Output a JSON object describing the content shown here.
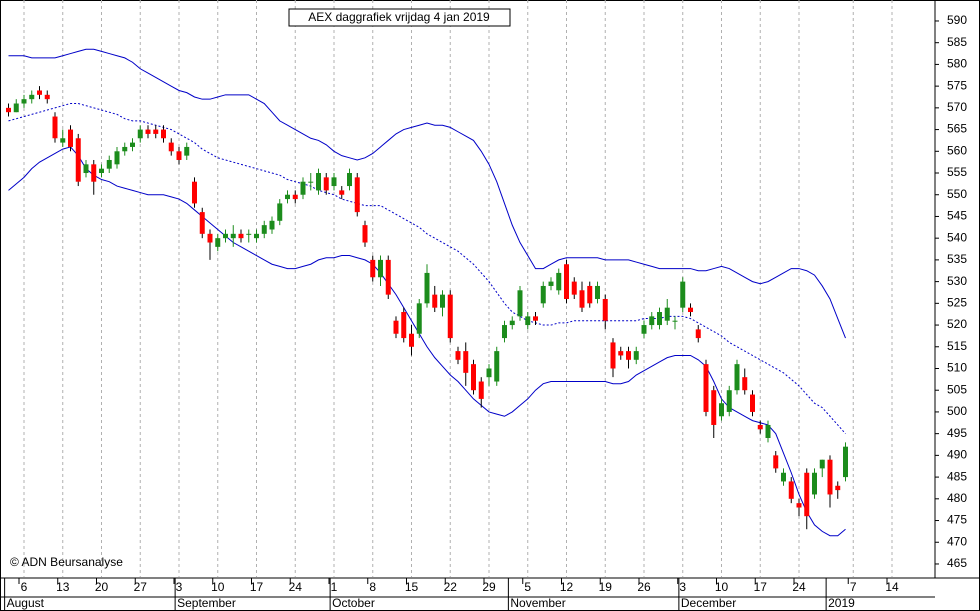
{
  "chart_data": {
    "type": "candlestick",
    "title": "AEX daggrafiek vrijdag 4 jan 2019",
    "credit": "© ADN Beursanalyse",
    "up_color": "#1c8c1c",
    "down_color": "#ff0000",
    "categories": [
      null,
      null,
      "6",
      null,
      null,
      null,
      null,
      "13",
      null,
      null,
      null,
      null,
      "20",
      null,
      null,
      null,
      null,
      "27",
      null,
      null,
      null,
      null,
      "3",
      null,
      null,
      null,
      null,
      "10",
      null,
      null,
      null,
      null,
      "17",
      null,
      null,
      null,
      null,
      "24",
      null,
      null,
      null,
      null,
      "1",
      null,
      null,
      null,
      null,
      "8",
      null,
      null,
      null,
      null,
      "15",
      null,
      null,
      null,
      null,
      "22",
      null,
      null,
      null,
      null,
      "29",
      null,
      null,
      null,
      null,
      "5",
      null,
      null,
      null,
      null,
      "12",
      null,
      null,
      null,
      null,
      "19",
      null,
      null,
      null,
      null,
      "26",
      null,
      null,
      null,
      null,
      "3",
      null,
      null,
      null,
      null,
      "10",
      null,
      null,
      null,
      null,
      "17",
      null,
      null,
      null,
      null,
      "24",
      null,
      null,
      null,
      null,
      null,
      null,
      "7",
      null,
      null,
      null,
      null,
      "14",
      null,
      null,
      null,
      null
    ],
    "month_categories": [
      "August",
      null,
      null,
      null,
      null,
      null,
      null,
      null,
      null,
      null,
      null,
      null,
      null,
      null,
      null,
      null,
      null,
      null,
      null,
      null,
      null,
      null,
      "September",
      null,
      null,
      null,
      null,
      null,
      null,
      null,
      null,
      null,
      null,
      null,
      null,
      null,
      null,
      null,
      null,
      null,
      null,
      null,
      "October",
      null,
      null,
      null,
      null,
      null,
      null,
      null,
      null,
      null,
      null,
      null,
      null,
      null,
      null,
      null,
      null,
      null,
      null,
      null,
      null,
      null,
      null,
      "November",
      null,
      null,
      null,
      null,
      null,
      null,
      null,
      null,
      null,
      null,
      null,
      null,
      null,
      null,
      null,
      null,
      null,
      null,
      null,
      null,
      null,
      "December",
      null,
      null,
      null,
      null,
      null,
      null,
      null,
      null,
      null,
      null,
      null,
      null,
      null,
      null,
      null,
      null,
      null,
      null,
      "2019",
      null,
      null,
      null,
      null,
      null,
      null,
      null,
      null,
      null,
      null,
      null,
      null,
      null
    ],
    "open": [
      570,
      569,
      571,
      572,
      574,
      573,
      568,
      562,
      565,
      563,
      555,
      557,
      555,
      556,
      557,
      560,
      561,
      563,
      565,
      565,
      565,
      562,
      560,
      559,
      553,
      546,
      541,
      538,
      540,
      540,
      541,
      541,
      540,
      541,
      542,
      544,
      549,
      550,
      550,
      553,
      551,
      554,
      552,
      551,
      552,
      554,
      543,
      535,
      531,
      535,
      521,
      523,
      518,
      518,
      525,
      527,
      524,
      527,
      514,
      514,
      511,
      507,
      508,
      507,
      517,
      520,
      522,
      520,
      522,
      525,
      529,
      528,
      534,
      530,
      528,
      529,
      526,
      526,
      516,
      514,
      514,
      512,
      518,
      520,
      520,
      521,
      521,
      524,
      524,
      519,
      511,
      505,
      499,
      500,
      505,
      508,
      504,
      497,
      494,
      490,
      484,
      484,
      479,
      486,
      481,
      487,
      489,
      483,
      485,
      null,
      null,
      null,
      null,
      null,
      null,
      null,
      null,
      null,
      null
    ],
    "high": [
      571,
      572,
      573,
      574,
      575,
      574,
      569,
      565,
      566,
      564,
      558,
      558,
      557,
      559,
      561,
      562,
      563,
      566,
      566,
      566,
      566,
      563,
      561,
      562,
      554,
      547,
      542,
      541,
      542,
      543,
      542,
      542,
      542,
      544,
      545,
      549,
      551,
      551,
      554,
      555,
      556,
      555,
      555,
      552,
      556,
      555,
      544,
      536,
      536,
      536,
      522,
      524,
      520,
      526,
      534,
      529,
      528,
      528,
      515,
      516,
      512,
      508,
      511,
      515,
      521,
      522,
      529,
      523,
      523,
      530,
      531,
      533,
      535,
      531,
      530,
      530,
      530,
      527,
      517,
      515,
      515,
      515,
      521,
      523,
      524,
      526,
      522,
      531,
      525,
      520,
      512,
      506,
      503,
      506,
      512,
      510,
      505,
      498,
      498,
      491,
      487,
      485,
      480,
      487,
      487,
      489,
      490,
      484,
      493,
      null,
      null,
      null,
      null,
      null,
      null,
      null,
      null,
      null,
      null
    ],
    "low": [
      568,
      569,
      570,
      571,
      572,
      571,
      562,
      561,
      560,
      552,
      554,
      550,
      554,
      555,
      556,
      559,
      560,
      562,
      563,
      563,
      562,
      559,
      557,
      558,
      547,
      540,
      535,
      537,
      539,
      538,
      539,
      539,
      539,
      540,
      541,
      543,
      548,
      548,
      549,
      551,
      550,
      550,
      551,
      549,
      551,
      545,
      538,
      530,
      529,
      526,
      517,
      516,
      513,
      517,
      524,
      523,
      522,
      516,
      511,
      506,
      504,
      501,
      506,
      506,
      516,
      519,
      521,
      519,
      520,
      524,
      528,
      527,
      525,
      526,
      523,
      524,
      525,
      519,
      508,
      512,
      510,
      511,
      517,
      519,
      519,
      520,
      519,
      523,
      522,
      516,
      499,
      494,
      498,
      499,
      504,
      504,
      499,
      495,
      493,
      486,
      483,
      479,
      476,
      473,
      480,
      485,
      478,
      480,
      484,
      null,
      null,
      null,
      null,
      null,
      null,
      null,
      null,
      null,
      null
    ],
    "close": [
      569,
      571,
      572,
      573,
      573,
      572,
      563,
      563,
      561,
      553,
      557,
      553,
      556,
      558,
      560,
      561,
      562,
      565,
      564,
      564,
      563,
      560,
      558,
      561,
      548,
      541,
      539,
      540,
      541,
      541,
      540,
      541,
      541,
      543,
      544,
      548,
      550,
      549,
      553,
      553,
      555,
      551,
      554,
      550,
      555,
      546,
      539,
      531,
      535,
      527,
      518,
      517,
      515,
      525,
      532,
      524,
      527,
      517,
      512,
      509,
      505,
      503,
      510,
      514,
      520,
      521,
      528,
      522,
      521,
      529,
      530,
      532,
      526,
      527,
      524,
      525,
      529,
      521,
      510,
      513,
      512,
      514,
      520,
      522,
      523,
      524,
      521,
      530,
      523,
      517,
      500,
      497,
      502,
      505,
      511,
      505,
      500,
      496,
      497,
      487,
      486,
      480,
      478,
      476,
      486,
      489,
      481,
      482,
      492,
      null,
      null,
      null,
      null,
      null,
      null,
      null,
      null,
      null,
      null
    ],
    "series": [
      {
        "color": "#0000c8",
        "style": "solid",
        "values": [
          582,
          582,
          582,
          581.5,
          581.5,
          581.5,
          581.5,
          582,
          582.5,
          583,
          583.5,
          583.5,
          583,
          582.5,
          582,
          581.5,
          580.5,
          579,
          578,
          577,
          576,
          575,
          574,
          573.5,
          572.5,
          572,
          572,
          572.5,
          573,
          573,
          573,
          573,
          572,
          571,
          569,
          567,
          566,
          565,
          564,
          563,
          562.5,
          561.5,
          560,
          559,
          558.5,
          558,
          558.5,
          559.5,
          561,
          562.5,
          564,
          565,
          565.5,
          566,
          566.5,
          566,
          566,
          565.5,
          564.5,
          563.5,
          562.5,
          560,
          557,
          553,
          548,
          543,
          539,
          536,
          533,
          533,
          534,
          535,
          535.5,
          535.5,
          535.5,
          535.5,
          535.5,
          535,
          535,
          535,
          535,
          534.5,
          534,
          533.5,
          533,
          533,
          533,
          533,
          533,
          532.5,
          532.5,
          533,
          533.5,
          533,
          532,
          531,
          530,
          529.5,
          530,
          531,
          532,
          533,
          533,
          532.5,
          531.5,
          529,
          526,
          521.5,
          517,
          null,
          null,
          null,
          null,
          null,
          null,
          null,
          null,
          null,
          null
        ]
      },
      {
        "color": "#0000c8",
        "style": "dotted",
        "values": [
          567,
          567.5,
          568,
          568.5,
          569,
          569.5,
          570,
          570.5,
          571,
          571,
          570.5,
          570,
          569.5,
          569,
          568.5,
          567.5,
          567,
          567,
          566.5,
          566,
          565.5,
          565,
          564,
          563,
          562,
          560.5,
          559.5,
          558.5,
          558,
          557.5,
          557,
          556.5,
          556,
          555.5,
          555,
          554.5,
          553.5,
          553,
          552.5,
          552,
          551,
          550.5,
          550,
          549,
          548.5,
          548,
          547.5,
          547.5,
          547.5,
          546.5,
          545.5,
          544.5,
          543.5,
          542.5,
          541,
          540,
          539,
          538,
          537,
          535.5,
          534,
          532,
          530,
          527.5,
          525,
          523,
          522,
          521,
          520.5,
          520,
          520,
          520.5,
          520.5,
          521,
          521,
          521,
          521,
          521,
          521,
          521,
          521,
          521,
          521.5,
          521.5,
          521.5,
          522,
          522,
          522,
          521.5,
          520.5,
          519.5,
          518.5,
          517.5,
          516,
          515,
          514,
          513,
          512,
          511,
          510,
          509,
          507.5,
          506,
          504,
          502,
          501,
          499,
          497,
          495,
          null,
          null,
          null,
          null,
          null,
          null,
          null,
          null,
          null,
          null
        ]
      },
      {
        "color": "#0000c8",
        "style": "solid",
        "values": [
          551,
          552.5,
          554,
          556,
          557.5,
          558.5,
          559.5,
          560.5,
          561,
          559,
          556,
          554.5,
          553.5,
          553,
          552,
          551.5,
          551,
          550.5,
          550,
          550,
          550,
          549.5,
          549,
          548,
          546.5,
          545,
          543.5,
          542,
          540.5,
          539,
          538,
          537,
          536,
          535,
          534,
          533.5,
          533,
          533,
          533.5,
          534,
          535,
          535.5,
          535.5,
          536,
          536,
          535.5,
          535,
          534,
          532,
          529.5,
          527,
          524,
          521,
          518,
          515,
          512.5,
          510.5,
          508.5,
          507,
          505,
          503,
          501.5,
          500,
          499.5,
          499,
          500,
          501.5,
          503,
          505,
          506.5,
          507,
          507,
          507,
          507,
          507,
          507,
          507,
          507,
          506.5,
          506.5,
          507,
          508.5,
          509.5,
          510.5,
          511.5,
          512.5,
          513,
          513,
          513,
          512,
          510.5,
          507,
          503,
          501,
          500,
          499,
          498,
          497.5,
          497,
          495,
          490.5,
          486,
          481,
          477,
          474,
          472.5,
          471.5,
          471.5,
          473,
          null,
          null,
          null,
          null,
          null,
          null,
          null,
          null,
          null,
          null
        ]
      }
    ],
    "ylim": [
      462,
      594
    ],
    "yticks": [
      465,
      470,
      475,
      480,
      485,
      490,
      495,
      500,
      505,
      510,
      515,
      520,
      525,
      530,
      535,
      540,
      545,
      550,
      555,
      560,
      565,
      570,
      575,
      580,
      585,
      590
    ],
    "grid": true
  }
}
